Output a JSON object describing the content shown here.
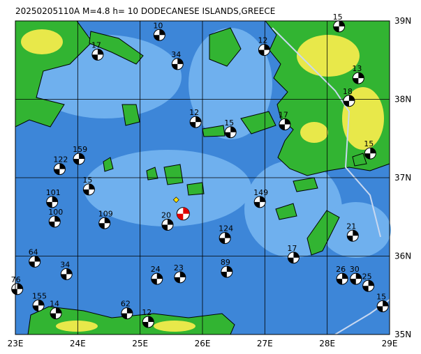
{
  "map": {
    "title": "20250205110A M=4.8 h= 10 DODECANESE ISLANDS,GREECE",
    "xlim": [
      23,
      29
    ],
    "ylim": [
      35,
      39
    ],
    "xticks": [
      {
        "value": 23,
        "label": "23E"
      },
      {
        "value": 24,
        "label": "24E"
      },
      {
        "value": 25,
        "label": "25E"
      },
      {
        "value": 26,
        "label": "26E"
      },
      {
        "value": 27,
        "label": "27E"
      },
      {
        "value": 28,
        "label": "28E"
      },
      {
        "value": 29,
        "label": "29E"
      }
    ],
    "yticks": [
      {
        "value": 35,
        "label": "35N"
      },
      {
        "value": 36,
        "label": "36N"
      },
      {
        "value": 37,
        "label": "37N"
      },
      {
        "value": 38,
        "label": "38N"
      },
      {
        "value": 39,
        "label": "39N"
      }
    ],
    "main_event": {
      "lon": 25.69,
      "lat": 36.54
    },
    "events": [
      {
        "label": "10",
        "lon": 25.31,
        "lat": 38.82
      },
      {
        "label": "17",
        "lon": 24.32,
        "lat": 38.57
      },
      {
        "label": "13",
        "lon": 28.5,
        "lat": 38.27
      },
      {
        "label": "18",
        "lon": 28.35,
        "lat": 37.98
      },
      {
        "label": "12",
        "lon": 25.89,
        "lat": 37.71
      },
      {
        "label": "15",
        "lon": 26.45,
        "lat": 37.58
      },
      {
        "label": "17",
        "lon": 27.32,
        "lat": 37.68
      },
      {
        "label": "122",
        "lon": 23.71,
        "lat": 37.11
      },
      {
        "label": "159",
        "lon": 24.02,
        "lat": 37.24
      },
      {
        "label": "15",
        "lon": 24.18,
        "lat": 36.85
      },
      {
        "label": "101",
        "lon": 23.59,
        "lat": 36.69
      },
      {
        "label": "100",
        "lon": 23.63,
        "lat": 36.44
      },
      {
        "label": "109",
        "lon": 24.43,
        "lat": 36.42
      },
      {
        "label": "20",
        "lon": 25.44,
        "lat": 36.4
      },
      {
        "label": "149",
        "lon": 26.92,
        "lat": 36.69
      },
      {
        "label": "124",
        "lon": 26.36,
        "lat": 36.23
      },
      {
        "label": "64",
        "lon": 23.31,
        "lat": 35.93
      },
      {
        "label": "34",
        "lon": 23.82,
        "lat": 35.77
      },
      {
        "label": "76",
        "lon": 23.03,
        "lat": 35.58
      },
      {
        "label": "155",
        "lon": 23.37,
        "lat": 35.37
      },
      {
        "label": "24",
        "lon": 25.27,
        "lat": 35.71
      },
      {
        "label": "23",
        "lon": 25.64,
        "lat": 35.73
      },
      {
        "label": "89",
        "lon": 26.39,
        "lat": 35.8
      },
      {
        "label": "17",
        "lon": 27.46,
        "lat": 35.98
      },
      {
        "label": "21",
        "lon": 28.41,
        "lat": 36.26
      },
      {
        "label": "26",
        "lon": 28.24,
        "lat": 35.71
      },
      {
        "label": "30",
        "lon": 28.46,
        "lat": 35.71
      },
      {
        "label": "25",
        "lon": 28.66,
        "lat": 35.62
      },
      {
        "label": "15",
        "lon": 28.89,
        "lat": 35.36
      },
      {
        "label": "62",
        "lon": 24.79,
        "lat": 35.27
      },
      {
        "label": "12",
        "lon": 25.13,
        "lat": 35.16
      },
      {
        "label": "14",
        "lon": 23.65,
        "lat": 35.27
      },
      {
        "label": "15",
        "lon": 28.69,
        "lat": 37.31
      },
      {
        "label": "12",
        "lon": 26.99,
        "lat": 38.63
      },
      {
        "label": "15",
        "lon": 28.19,
        "lat": 38.93
      },
      {
        "label": "34",
        "lon": 25.6,
        "lat": 38.45
      }
    ]
  }
}
